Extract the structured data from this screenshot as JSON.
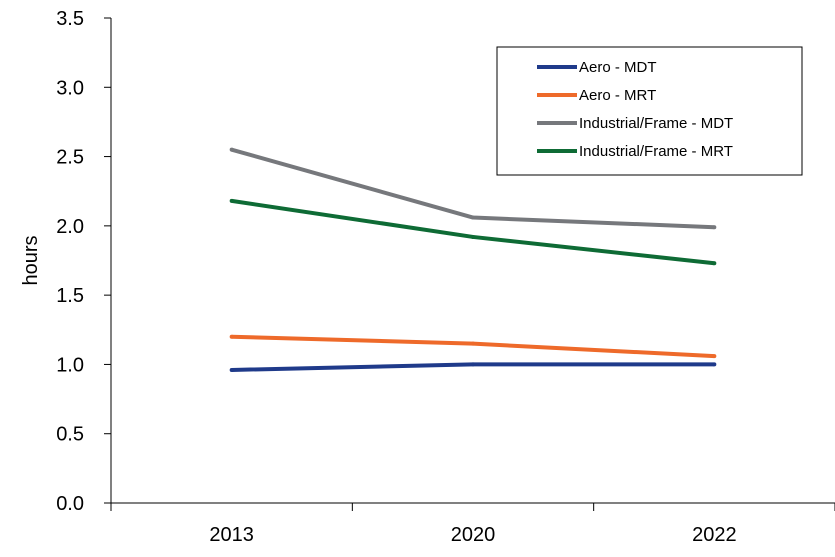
{
  "chart_data": {
    "type": "line",
    "categories": [
      "2013",
      "2020",
      "2022"
    ],
    "series": [
      {
        "name": "Aero - MDT",
        "values": [
          0.96,
          1.0,
          1.0
        ],
        "color": "#1F3A8A"
      },
      {
        "name": "Aero - MRT",
        "values": [
          1.2,
          1.15,
          1.06
        ],
        "color": "#EE6A2A"
      },
      {
        "name": "Industrial/Frame - MDT",
        "values": [
          2.55,
          2.06,
          1.99
        ],
        "color": "#76787C"
      },
      {
        "name": "Industrial/Frame - MRT",
        "values": [
          2.18,
          1.92,
          1.73
        ],
        "color": "#0E6B35"
      }
    ],
    "xlabel": "",
    "ylabel": "hours",
    "ylim": [
      0,
      3.5
    ],
    "yticks": [
      "0.0",
      "0.5",
      "1.0",
      "1.5",
      "2.0",
      "2.5",
      "3.0",
      "3.5"
    ],
    "grid": false,
    "legend_position": "top-right"
  }
}
